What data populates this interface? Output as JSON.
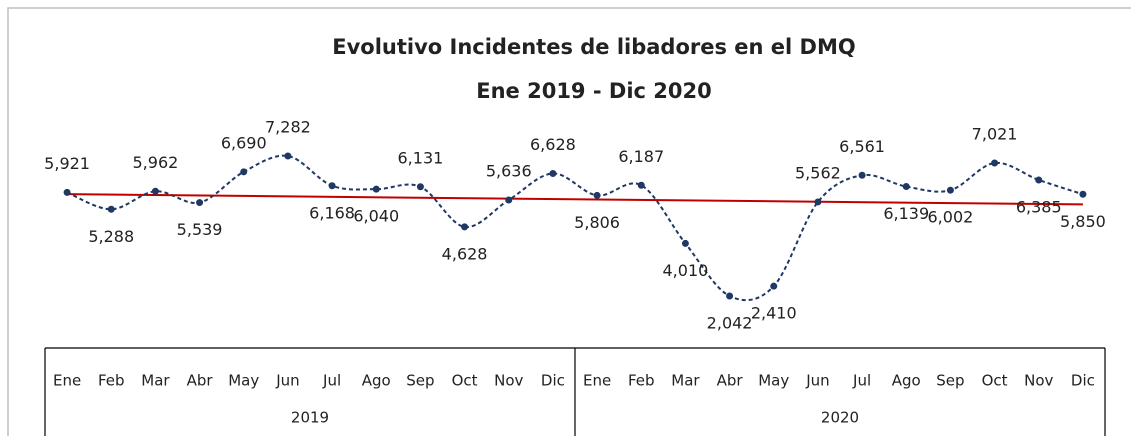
{
  "chart_data": {
    "type": "line",
    "title": "Evolutivo  Incidentes de libadores en el DMQ",
    "subtitle": "Ene 2019 - Dic 2020",
    "categories": [
      "Ene",
      "Feb",
      "Mar",
      "Abr",
      "May",
      "Jun",
      "Jul",
      "Ago",
      "Sep",
      "Oct",
      "Nov",
      "Dic",
      "Ene",
      "Feb",
      "Mar",
      "Abr",
      "May",
      "Jun",
      "Jul",
      "Ago",
      "Sep",
      "Oct",
      "Nov",
      "Dic"
    ],
    "years": [
      "2019",
      "2020"
    ],
    "series": [
      {
        "color": "#1f3864",
        "values": [
          5921,
          5288,
          5962,
          5539,
          6690,
          7282,
          6168,
          6040,
          6131,
          4628,
          5636,
          6628,
          5806,
          6187,
          4010,
          2042,
          2410,
          5562,
          6561,
          6139,
          6002,
          7021,
          6385,
          5850
        ],
        "value_labels": [
          "5,921",
          "5,288",
          "5,962",
          "5,539",
          "6,690",
          "7,282",
          "6,168",
          "6,040",
          "6,131",
          "4,628",
          "5,636",
          "6,628",
          "5,806",
          "6,187",
          "4,010",
          "2,042",
          "2,410",
          "5,562",
          "6,561",
          "6,139",
          "6,002",
          "7,021",
          "6,385",
          "5,850"
        ]
      }
    ],
    "trendline": {
      "type": "linear",
      "color": "#c00000"
    }
  }
}
